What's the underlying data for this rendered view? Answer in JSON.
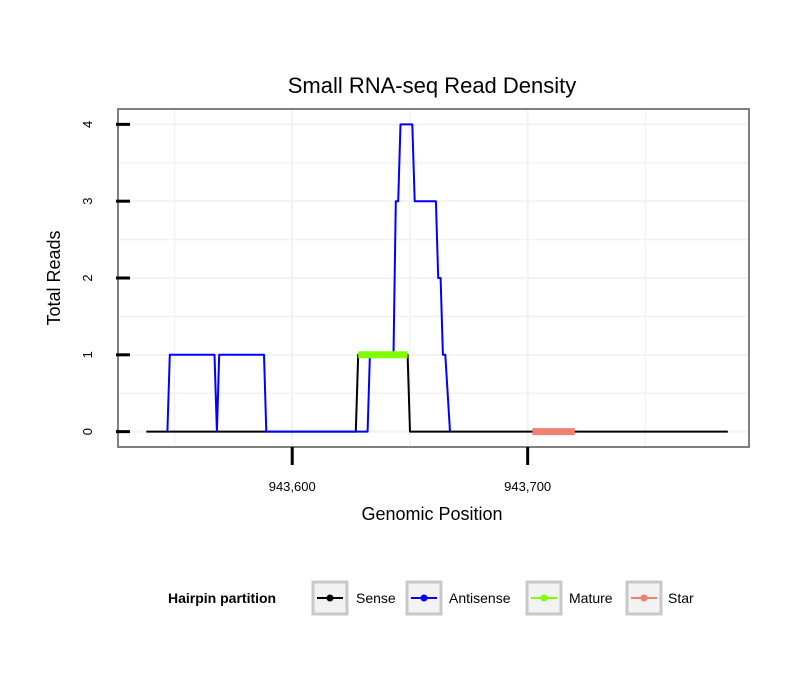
{
  "chart_data": {
    "type": "line",
    "title": "Small RNA-seq Read Density",
    "xlabel": "Genomic Position",
    "ylabel": "Total Reads",
    "xlim": [
      943526,
      943794
    ],
    "ylim": [
      -0.2,
      4.2
    ],
    "x_ticks": [
      943600,
      943700
    ],
    "x_tick_labels": [
      "943,600",
      "943,700"
    ],
    "y_ticks": [
      0,
      1,
      2,
      3,
      4
    ],
    "y_tick_labels": [
      "0",
      "1",
      "2",
      "3",
      "4"
    ],
    "grid": true,
    "legend_position": "bottom",
    "legend_title": "Hairpin partition",
    "series": [
      {
        "name": "Sense",
        "color": "#000000",
        "points": [
          [
            943538,
            0
          ],
          [
            943627,
            0
          ],
          [
            943628,
            1
          ],
          [
            943649,
            1
          ],
          [
            943650,
            0
          ],
          [
            943785,
            0
          ]
        ]
      },
      {
        "name": "Antisense",
        "color": "#0000ff",
        "points": [
          [
            943547,
            0
          ],
          [
            943548,
            1
          ],
          [
            943567,
            1
          ],
          [
            943568,
            0
          ],
          [
            943569,
            1
          ],
          [
            943588,
            1
          ],
          [
            943589,
            0
          ],
          [
            943632,
            0
          ],
          [
            943633,
            1
          ],
          [
            943643,
            1
          ],
          [
            943644,
            3
          ],
          [
            943645,
            3
          ],
          [
            943646,
            4
          ],
          [
            943651,
            4
          ],
          [
            943652,
            3
          ],
          [
            943661,
            3
          ],
          [
            943662,
            2
          ],
          [
            943663,
            2
          ],
          [
            943664,
            1
          ],
          [
            943665,
            1
          ],
          [
            943667,
            0
          ]
        ]
      },
      {
        "name": "Mature",
        "color": "#80ff00",
        "points": [
          [
            943628,
            1
          ],
          [
            943649,
            1
          ]
        ]
      },
      {
        "name": "Star",
        "color": "#f08070",
        "points": [
          [
            943702,
            0
          ],
          [
            943720,
            0
          ]
        ]
      }
    ]
  }
}
